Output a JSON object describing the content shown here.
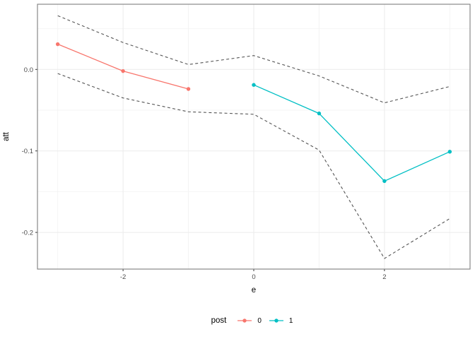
{
  "chart_data": {
    "type": "line",
    "title": "",
    "xlabel": "e",
    "ylabel": "att",
    "xlim": [
      -3.31,
      3.31
    ],
    "ylim": [
      -0.245,
      0.08
    ],
    "grid": true,
    "x_ticks": [
      {
        "value": -2,
        "label": "-2"
      },
      {
        "value": 0,
        "label": "0"
      },
      {
        "value": 2,
        "label": "2"
      }
    ],
    "y_ticks": [
      {
        "value": 0.0,
        "label": "0.0"
      },
      {
        "value": -0.1,
        "label": "-0.1"
      },
      {
        "value": -0.2,
        "label": "-0.2"
      }
    ],
    "x_minor": [
      -3,
      -1,
      1,
      3
    ],
    "y_minor": [
      0.05,
      -0.05,
      -0.15
    ],
    "series": [
      {
        "name": "post-0",
        "legend_label": "0",
        "color": "#F8766D",
        "style": "solid",
        "points": true,
        "x": [
          -3,
          -2,
          -1
        ],
        "y": [
          0.031,
          -0.002,
          -0.024
        ]
      },
      {
        "name": "post-1",
        "legend_label": "1",
        "color": "#00BFC4",
        "style": "solid",
        "points": true,
        "x": [
          0,
          1,
          2,
          3
        ],
        "y": [
          -0.019,
          -0.054,
          -0.137,
          -0.101
        ]
      },
      {
        "name": "ci-upper",
        "color": "#545454",
        "style": "dashed",
        "points": false,
        "x": [
          -3,
          -2,
          -1,
          0,
          1,
          2,
          3
        ],
        "y": [
          0.066,
          0.033,
          0.006,
          0.017,
          -0.008,
          -0.041,
          -0.021
        ]
      },
      {
        "name": "ci-lower",
        "color": "#545454",
        "style": "dashed",
        "points": false,
        "x": [
          -3,
          -2,
          -1,
          0,
          1,
          2,
          3
        ],
        "y": [
          -0.005,
          -0.035,
          -0.052,
          -0.055,
          -0.099,
          -0.232,
          -0.183
        ]
      }
    ],
    "legend": {
      "title": "post",
      "position": "bottom",
      "entries": [
        {
          "label": "0",
          "color": "#F8766D"
        },
        {
          "label": "1",
          "color": "#00BFC4"
        }
      ]
    },
    "colors": {
      "grid_major": "#ebebeb",
      "grid_minor": "#f4f4f4",
      "panel_border": "#7f7f7f",
      "tick_mark": "#333333",
      "tick_label": "#4d4d4d",
      "axis_title": "#000000"
    }
  }
}
